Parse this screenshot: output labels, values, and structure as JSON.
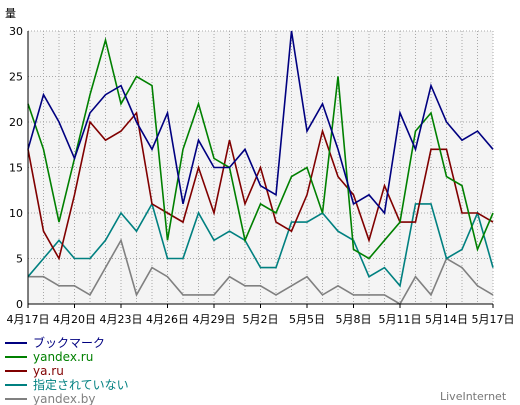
{
  "chart_data": {
    "type": "line",
    "ylabel": "量",
    "ylim": [
      0,
      30
    ],
    "yticks": [
      0,
      5,
      10,
      15,
      20,
      25,
      30
    ],
    "grid": true,
    "legend_position": "bottom-left",
    "x_count": 31,
    "x_tick_labels": [
      {
        "index": 0,
        "label": "4月17日"
      },
      {
        "index": 3,
        "label": "4月20日"
      },
      {
        "index": 6,
        "label": "4月23日"
      },
      {
        "index": 9,
        "label": "4月26日"
      },
      {
        "index": 12,
        "label": "4月29日"
      },
      {
        "index": 15,
        "label": "5月2日"
      },
      {
        "index": 18,
        "label": "5月5日"
      },
      {
        "index": 21,
        "label": "5月8日"
      },
      {
        "index": 24,
        "label": "5月11日"
      },
      {
        "index": 27,
        "label": "5月14日"
      },
      {
        "index": 30,
        "label": "5月17日"
      }
    ],
    "series": [
      {
        "name": "ブックマーク",
        "color": "#000080",
        "values": [
          17,
          23,
          20,
          16,
          21,
          23,
          24,
          20,
          17,
          21,
          11,
          18,
          15,
          15,
          17,
          13,
          12,
          30,
          19,
          22,
          17,
          11,
          12,
          10,
          21,
          17,
          24,
          20,
          18,
          19,
          17
        ]
      },
      {
        "name": "yandex.ru",
        "color": "#008000",
        "values": [
          22,
          17,
          9,
          16,
          23,
          29,
          22,
          25,
          24,
          7,
          17,
          22,
          16,
          15,
          7,
          11,
          10,
          14,
          15,
          10,
          25,
          6,
          5,
          7,
          9,
          19,
          21,
          14,
          13,
          6,
          10
        ]
      },
      {
        "name": "ya.ru",
        "color": "#800000",
        "values": [
          17,
          8,
          5,
          12,
          20,
          18,
          19,
          21,
          11,
          10,
          9,
          15,
          10,
          18,
          11,
          15,
          9,
          8,
          12,
          19,
          14,
          12,
          7,
          13,
          9,
          9,
          17,
          17,
          10,
          10,
          9
        ]
      },
      {
        "name": "指定されていない",
        "color": "#008080",
        "values": [
          3,
          5,
          7,
          5,
          5,
          7,
          10,
          8,
          11,
          5,
          5,
          10,
          7,
          8,
          7,
          4,
          4,
          9,
          9,
          10,
          8,
          7,
          3,
          4,
          2,
          11,
          11,
          5,
          6,
          10,
          4
        ]
      },
      {
        "name": "yandex.by",
        "color": "#808080",
        "values": [
          3,
          3,
          2,
          2,
          1,
          4,
          7,
          1,
          4,
          3,
          1,
          1,
          1,
          3,
          2,
          2,
          1,
          2,
          3,
          1,
          2,
          1,
          1,
          1,
          0,
          3,
          1,
          5,
          4,
          2,
          1
        ]
      }
    ]
  },
  "branding": "LiveInternet"
}
